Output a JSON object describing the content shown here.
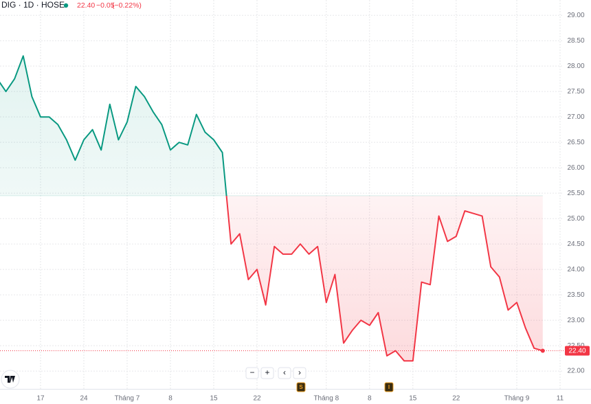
{
  "chart_data": {
    "type": "baseline",
    "title": "DIG · 1D · HOSE",
    "price": "22.40",
    "change": "−0.05",
    "change_pct": "(−0.22%)",
    "categories": [
      null,
      null,
      null,
      null,
      null,
      "17",
      null,
      null,
      null,
      null,
      "24",
      null,
      null,
      null,
      null,
      "Tháng 7",
      null,
      null,
      null,
      null,
      "8",
      null,
      null,
      null,
      null,
      "15",
      null,
      null,
      null,
      null,
      "22",
      null,
      null,
      null,
      null,
      null,
      null,
      null,
      "Tháng 8",
      null,
      null,
      null,
      null,
      "8",
      null,
      null,
      null,
      null,
      "15",
      null,
      null,
      null,
      null,
      "22",
      null,
      null,
      null,
      null,
      null,
      null,
      "Tháng 9",
      null,
      null,
      null,
      null,
      "11"
    ],
    "values": [
      27.75,
      27.5,
      27.75,
      28.2,
      27.4,
      27.0,
      27.0,
      26.85,
      26.55,
      26.15,
      26.55,
      26.75,
      26.35,
      27.25,
      26.55,
      26.9,
      27.6,
      27.4,
      27.1,
      26.85,
      26.35,
      26.5,
      26.45,
      27.05,
      26.7,
      26.55,
      26.3,
      24.5,
      24.7,
      23.8,
      24.0,
      23.3,
      24.45,
      24.3,
      24.3,
      24.5,
      24.3,
      24.45,
      23.35,
      23.9,
      22.55,
      22.8,
      23.0,
      22.9,
      23.15,
      22.3,
      22.4,
      22.2,
      22.2,
      23.75,
      23.7,
      25.05,
      24.55,
      24.65,
      25.15,
      25.1,
      25.05,
      24.05,
      23.85,
      23.2,
      23.35,
      22.85,
      22.45,
      22.4,
      null,
      null
    ],
    "baseline": 25.45,
    "last": {
      "value": 22.4,
      "label": "22.40"
    },
    "up_color": "#089981",
    "down_color": "#f23645",
    "ylim": [
      21.65,
      29.3
    ],
    "yticks": [
      {
        "value": 22,
        "label": "22.00"
      },
      {
        "value": 22.5,
        "label": "22.50"
      },
      {
        "value": 23,
        "label": "23.00"
      },
      {
        "value": 23.5,
        "label": "23.50"
      },
      {
        "value": 24,
        "label": "24.00"
      },
      {
        "value": 24.5,
        "label": "24.50"
      },
      {
        "value": 25,
        "label": "25.00"
      },
      {
        "value": 25.5,
        "label": "25.50"
      },
      {
        "value": 26,
        "label": "26.00"
      },
      {
        "value": 26.5,
        "label": "26.50"
      },
      {
        "value": 27,
        "label": "27.00"
      },
      {
        "value": 27.5,
        "label": "27.50"
      },
      {
        "value": 28,
        "label": "28.00"
      },
      {
        "value": 28.5,
        "label": "28.50"
      },
      {
        "value": 29,
        "label": "29.00"
      }
    ],
    "grid": true,
    "events": [
      "S",
      "I"
    ],
    "controls": [
      "−",
      "+",
      "‹",
      "›"
    ]
  }
}
